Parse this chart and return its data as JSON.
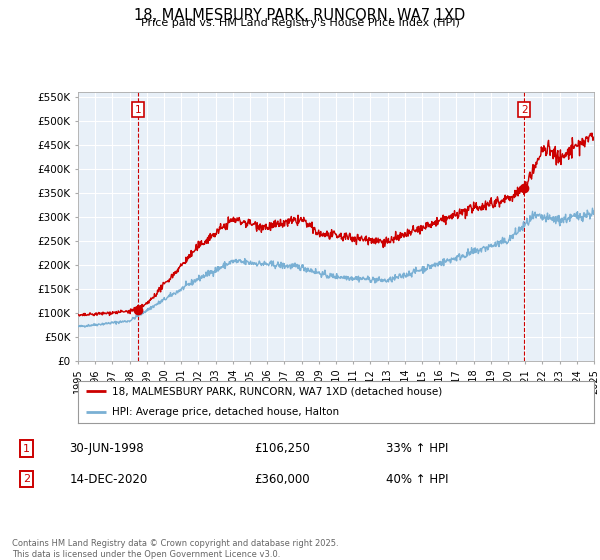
{
  "title": "18, MALMESBURY PARK, RUNCORN, WA7 1XD",
  "subtitle": "Price paid vs. HM Land Registry's House Price Index (HPI)",
  "ylim": [
    0,
    560000
  ],
  "yticks": [
    0,
    50000,
    100000,
    150000,
    200000,
    250000,
    300000,
    350000,
    400000,
    450000,
    500000,
    550000
  ],
  "ytick_labels": [
    "£0",
    "£50K",
    "£100K",
    "£150K",
    "£200K",
    "£250K",
    "£300K",
    "£350K",
    "£400K",
    "£450K",
    "£500K",
    "£550K"
  ],
  "line1_color": "#cc0000",
  "line2_color": "#7ab0d4",
  "chart_bg": "#e8f0f8",
  "sale1_date": 1998.5,
  "sale1_price": 106250,
  "sale2_date": 2020.95,
  "sale2_price": 360000,
  "legend_line1": "18, MALMESBURY PARK, RUNCORN, WA7 1XD (detached house)",
  "legend_line2": "HPI: Average price, detached house, Halton",
  "table_row1": [
    "1",
    "30-JUN-1998",
    "£106,250",
    "33% ↑ HPI"
  ],
  "table_row2": [
    "2",
    "14-DEC-2020",
    "£360,000",
    "40% ↑ HPI"
  ],
  "footer": "Contains HM Land Registry data © Crown copyright and database right 2025.\nThis data is licensed under the Open Government Licence v3.0.",
  "background_color": "#ffffff",
  "grid_color": "#ffffff",
  "vline_color": "#cc0000",
  "vline_dates": [
    1998.5,
    2020.95
  ]
}
